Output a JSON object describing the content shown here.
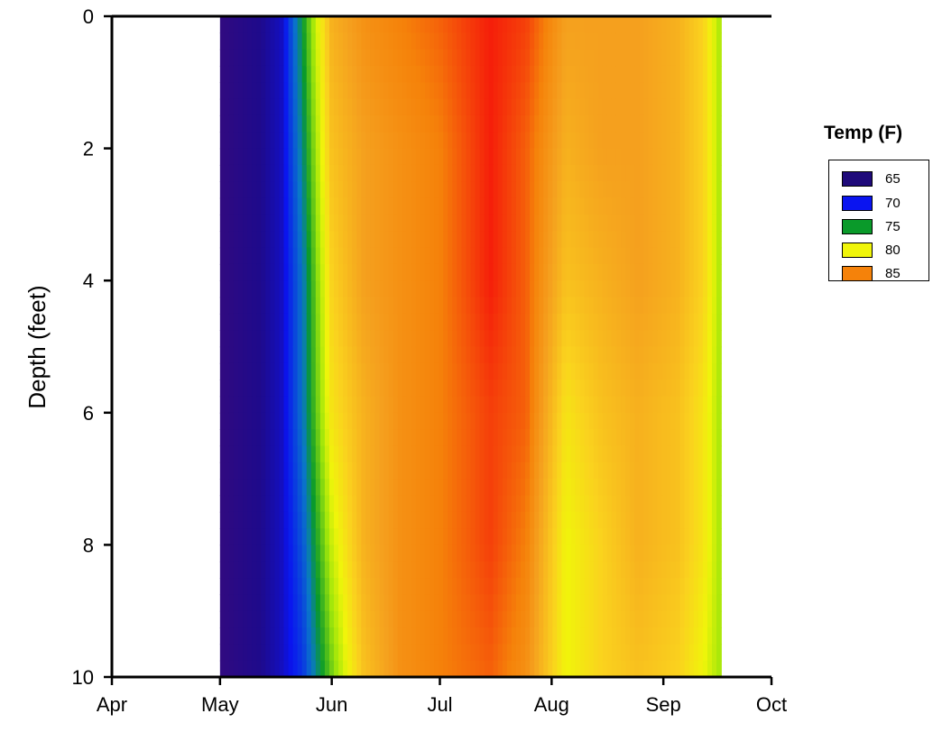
{
  "chart_data": {
    "type": "heatmap",
    "title": "",
    "xlabel": "",
    "ylabel": "Depth (feet)",
    "x_ticks": [
      "Apr",
      "May",
      "Jun",
      "Jul",
      "Aug",
      "Sep",
      "Oct"
    ],
    "y_ticks": [
      "0",
      "2",
      "4",
      "6",
      "8",
      "10"
    ],
    "xlim": [
      "Apr",
      "Oct"
    ],
    "ylim": [
      0,
      10
    ],
    "y_inverted": true,
    "data_range_x": [
      "May 1",
      "Sep 17"
    ],
    "depths_ft": [
      0,
      2,
      4,
      6,
      8,
      10
    ],
    "profiles": [
      {
        "date": "May 1",
        "temps_F": [
          66,
          66,
          66,
          66,
          66,
          66
        ]
      },
      {
        "date": "May 18",
        "temps_F": [
          69,
          69,
          69,
          69,
          69,
          69
        ]
      },
      {
        "date": "May 24",
        "temps_F": [
          75,
          74,
          73,
          73,
          72,
          71
        ]
      },
      {
        "date": "Jun 1",
        "temps_F": [
          84,
          83,
          82,
          81,
          79,
          77
        ]
      },
      {
        "date": "Jun 10",
        "temps_F": [
          86,
          85,
          85,
          84,
          84,
          83
        ]
      },
      {
        "date": "Jun 20",
        "temps_F": [
          87,
          86,
          86,
          86,
          86,
          86
        ]
      },
      {
        "date": "Jul 1",
        "temps_F": [
          88,
          87,
          87,
          87,
          87,
          87
        ]
      },
      {
        "date": "Jul 15",
        "temps_F": [
          90,
          90,
          90,
          89,
          89,
          88
        ]
      },
      {
        "date": "Jul 25",
        "temps_F": [
          89,
          88,
          88,
          88,
          87,
          86
        ]
      },
      {
        "date": "Aug 5",
        "temps_F": [
          85,
          84,
          83,
          81,
          80,
          80
        ]
      },
      {
        "date": "Aug 15",
        "temps_F": [
          85,
          85,
          84,
          83,
          82,
          82
        ]
      },
      {
        "date": "Aug 25",
        "temps_F": [
          85,
          85,
          85,
          84,
          84,
          83
        ]
      },
      {
        "date": "Sep 5",
        "temps_F": [
          84,
          84,
          84,
          83,
          83,
          82
        ]
      },
      {
        "date": "Sep 12",
        "temps_F": [
          82,
          82,
          82,
          81,
          81,
          80
        ]
      },
      {
        "date": "Sep 17",
        "temps_F": [
          78,
          78,
          78,
          78,
          78,
          78
        ]
      }
    ],
    "legend": {
      "title": "Temp (F)",
      "placement": "right",
      "entries": [
        {
          "label": "65",
          "color": "#1f0a7a"
        },
        {
          "label": "70",
          "color": "#0a14f0"
        },
        {
          "label": "75",
          "color": "#0a9a2a"
        },
        {
          "label": "80",
          "color": "#f0f50a"
        },
        {
          "label": "85",
          "color": "#f5820a"
        }
      ]
    },
    "colorscale": [
      {
        "value": 65,
        "color": "#3a0a7a"
      },
      {
        "value": 68,
        "color": "#1e0a8c"
      },
      {
        "value": 70,
        "color": "#0a14f0"
      },
      {
        "value": 73,
        "color": "#0a78c8"
      },
      {
        "value": 75,
        "color": "#0a9a2a"
      },
      {
        "value": 78,
        "color": "#a0e60a"
      },
      {
        "value": 80,
        "color": "#f0f50a"
      },
      {
        "value": 82,
        "color": "#fad21e"
      },
      {
        "value": 85,
        "color": "#f5a01e"
      },
      {
        "value": 87,
        "color": "#f5820a"
      },
      {
        "value": 90,
        "color": "#f51e0a"
      }
    ]
  }
}
